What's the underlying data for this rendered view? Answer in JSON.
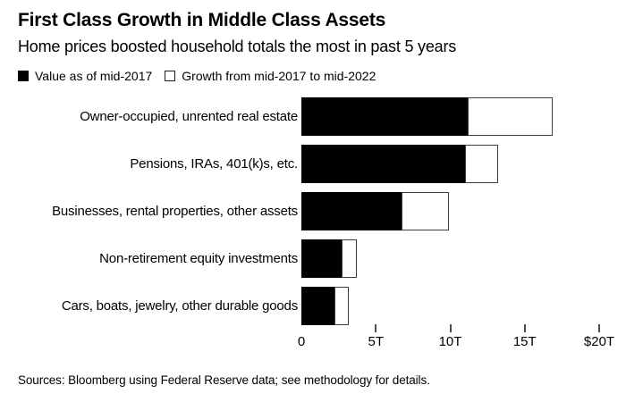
{
  "header": {
    "title": "First Class Growth in Middle Class Assets",
    "subtitle": "Home prices boosted household totals the most in past 5 years"
  },
  "legend": {
    "items": [
      {
        "label": "Value as of mid-2017",
        "swatch": "black-filled-square",
        "color": "#000000"
      },
      {
        "label": "Growth from mid-2017 to mid-2022",
        "swatch": "white-outline-square",
        "color": "#ffffff"
      }
    ]
  },
  "chart_data": {
    "type": "bar",
    "orientation": "horizontal",
    "stacked": true,
    "categories": [
      "Owner-occupied, unrented real estate",
      "Pensions, IRAs, 401(k)s, etc.",
      "Businesses, rental properties, other assets",
      "Non-retirement equity investments",
      "Cars, boats, jewelry, other durable goods"
    ],
    "series": [
      {
        "name": "Value as of mid-2017",
        "color": "#000000",
        "values": [
          11.2,
          11.0,
          6.7,
          2.7,
          2.2
        ]
      },
      {
        "name": "Growth from mid-2017 to mid-2022",
        "color": "#ffffff",
        "values": [
          5.7,
          2.2,
          3.2,
          1.0,
          1.0
        ]
      }
    ],
    "totals_mid_2022": [
      16.9,
      13.2,
      9.9,
      3.7,
      3.2
    ],
    "unit": "trillions of US dollars",
    "xlim": [
      0,
      20
    ],
    "xticks": [
      {
        "value": 0,
        "label": "0",
        "mark": false
      },
      {
        "value": 5,
        "label": "5T",
        "mark": true
      },
      {
        "value": 10,
        "label": "10T",
        "mark": true
      },
      {
        "value": 15,
        "label": "15T",
        "mark": true
      },
      {
        "value": 20,
        "label": "$20T",
        "mark": true
      }
    ],
    "grid": false,
    "legend_position": "top-left"
  },
  "footer": {
    "source": "Sources: Bloomberg using Federal Reserve data; see methodology for details."
  }
}
